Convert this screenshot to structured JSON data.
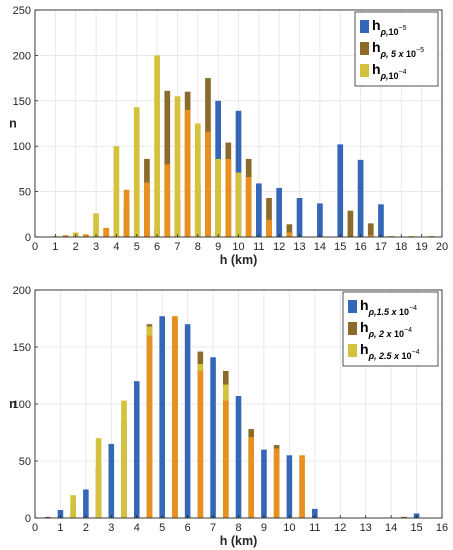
{
  "chart_data": [
    {
      "type": "bar",
      "xlabel": "h (km)",
      "ylabel": "n",
      "xlim": [
        0,
        20
      ],
      "ylim": [
        0,
        250
      ],
      "xticks": [
        "0",
        "1",
        "2",
        "3",
        "4",
        "5",
        "6",
        "7",
        "8",
        "9",
        "10",
        "11",
        "12",
        "13",
        "14",
        "15",
        "16",
        "17",
        "18",
        "19",
        "20"
      ],
      "yticks": [
        "0",
        "50",
        "100",
        "150",
        "200",
        "250"
      ],
      "bar_width": 0.28,
      "grid": true,
      "legend_position": "top-right",
      "legend": [
        {
          "main": "h",
          "sub": "ρ,",
          "mant": "10",
          "exp": "−5"
        },
        {
          "main": "h",
          "sub": "ρ, 5 x ",
          "mant": "10",
          "exp": "−5"
        },
        {
          "main": "h",
          "sub": "ρ,",
          "mant": "10",
          "exp": "−4"
        }
      ],
      "series": [
        {
          "color": "#3567b8",
          "x": [
            6.0,
            7.0,
            8.0,
            9.0,
            10.0,
            11.0,
            12.0,
            13.0,
            14.0,
            15.0,
            16.0,
            17.0
          ],
          "values": [
            10,
            40,
            58,
            150,
            139,
            59,
            54,
            43,
            37,
            102,
            85,
            36
          ]
        },
        {
          "color": "#8b6a2b",
          "x": [
            1.5,
            2.5,
            3.5,
            4.5,
            5.5,
            6.5,
            7.5,
            8.5,
            9.5,
            10.5,
            11.5,
            12.5,
            15.5,
            16.5
          ],
          "values": [
            1,
            2,
            10,
            33,
            86,
            161,
            160,
            175,
            104,
            86,
            43,
            14,
            29,
            15
          ]
        },
        {
          "color": "#d4c23c",
          "x": [
            1.0,
            2.0,
            3.0,
            4.0,
            5.0,
            6.0,
            7.0,
            8.0,
            9.0,
            10.0
          ],
          "values": [
            1,
            5,
            26,
            100,
            143,
            200,
            155,
            125,
            86,
            71
          ]
        },
        {
          "color": "#e8901f",
          "x": [
            1.5,
            2.5,
            3.5,
            4.5,
            5.5,
            6.5,
            7.5,
            8.5,
            9.5,
            10.5,
            11.5,
            12.5,
            16.5,
            17.5,
            18.5,
            19.5
          ],
          "values": [
            2,
            3,
            10,
            52,
            60,
            80,
            140,
            116,
            86,
            66,
            19,
            5,
            2,
            1,
            1,
            1
          ]
        }
      ]
    },
    {
      "type": "bar",
      "xlabel": "h (km)",
      "ylabel": "n",
      "xlim": [
        0,
        16
      ],
      "ylim": [
        0,
        200
      ],
      "xticks": [
        "0",
        "1",
        "2",
        "3",
        "4",
        "5",
        "6",
        "7",
        "8",
        "9",
        "10",
        "11",
        "12",
        "13",
        "14",
        "15",
        "16"
      ],
      "yticks": [
        "0",
        "50",
        "100",
        "150",
        "200"
      ],
      "bar_width": 0.22,
      "grid": true,
      "legend_position": "top-right",
      "legend": [
        {
          "main": "h",
          "sub": "ρ,1.5 x ",
          "mant": "10",
          "exp": "−4"
        },
        {
          "main": "h",
          "sub": "ρ, 2 x ",
          "mant": "10",
          "exp": "−4"
        },
        {
          "main": "h",
          "sub": "ρ, 2.5 x ",
          "mant": "10",
          "exp": "−4"
        }
      ],
      "series": [
        {
          "color": "#3567b8",
          "x": [
            1.0,
            2.0,
            3.0,
            4.0,
            5.0,
            6.0,
            7.0,
            8.0,
            9.0,
            10.0,
            11.0,
            15.0
          ],
          "values": [
            7,
            25,
            65,
            120,
            177,
            170,
            141,
            107,
            60,
            55,
            8,
            4
          ]
        },
        {
          "color": "#8b6a2b",
          "x": [
            0.5,
            1.5,
            2.5,
            3.5,
            4.5,
            5.5,
            6.5,
            7.5,
            8.5,
            9.5,
            14.5
          ],
          "values": [
            1,
            10,
            45,
            86,
            170,
            175,
            146,
            129,
            78,
            64,
            1
          ]
        },
        {
          "color": "#d4c23c",
          "x": [
            1.5,
            2.5,
            3.5,
            4.5,
            5.5,
            6.5,
            7.5,
            8.5,
            9.5,
            10.5
          ],
          "values": [
            20,
            70,
            103,
            168,
            177,
            135,
            117,
            67,
            55,
            31
          ]
        },
        {
          "color": "#e8901f",
          "x": [
            4.5,
            5.5,
            6.5,
            7.5,
            8.5,
            9.5,
            10.5
          ],
          "values": [
            160,
            177,
            129,
            103,
            71,
            61,
            55
          ]
        }
      ]
    }
  ]
}
